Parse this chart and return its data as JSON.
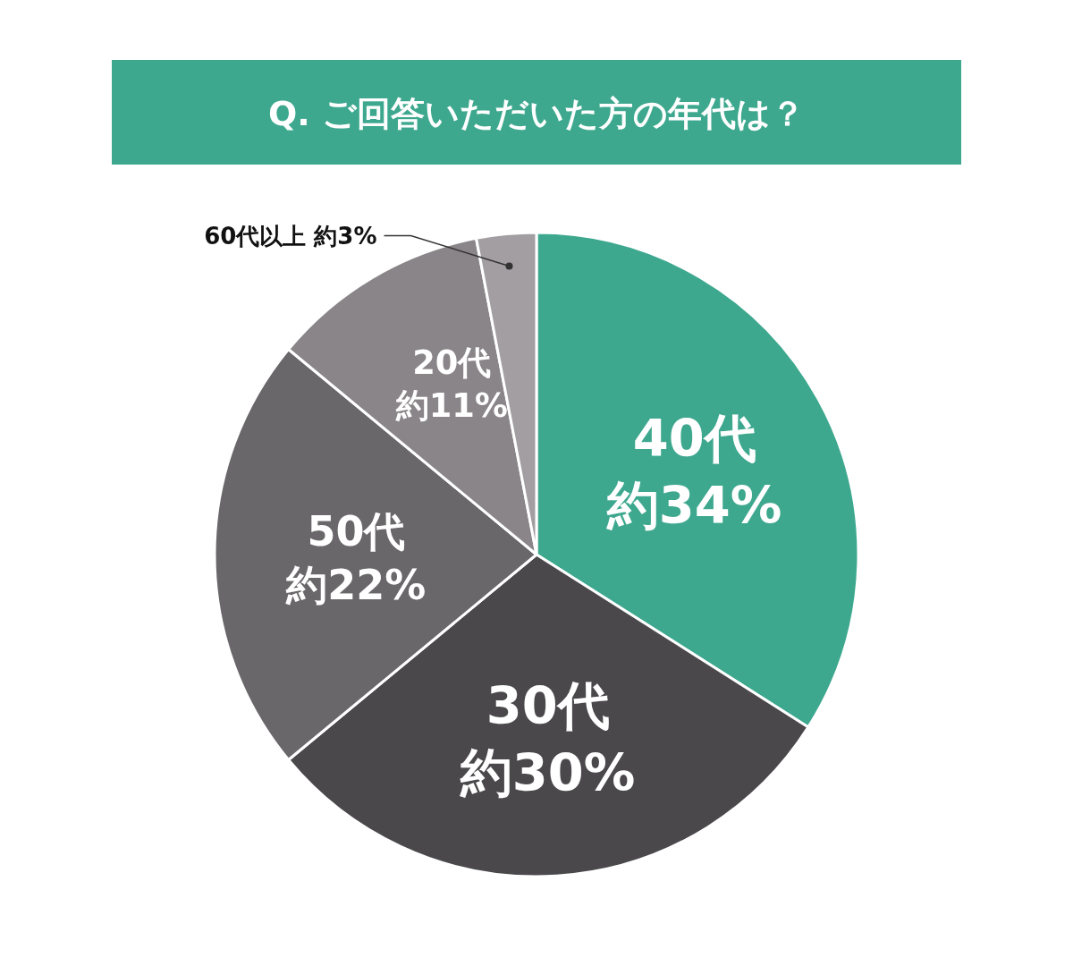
{
  "chart_data": {
    "type": "pie",
    "title": "Q. ご回答いただいた方の年代は？",
    "categories": [
      "40代",
      "30代",
      "50代",
      "20代",
      "60代以上"
    ],
    "values": [
      34,
      30,
      22,
      11,
      3
    ],
    "value_labels": [
      "約34%",
      "約30%",
      "約22%",
      "約11%",
      "約3%"
    ],
    "colors": [
      "#3ea88f",
      "#4a484b",
      "#6a676a",
      "#8a8588",
      "#a29ea1"
    ]
  }
}
